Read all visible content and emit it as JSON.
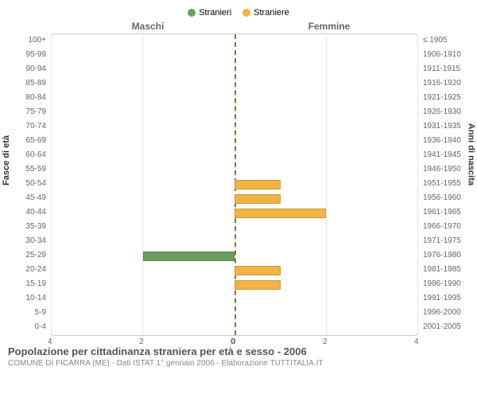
{
  "legend": {
    "male": {
      "label": "Stranieri",
      "color": "#6b9e5e"
    },
    "female": {
      "label": "Straniere",
      "color": "#f0b445"
    }
  },
  "side_titles": {
    "left": "Maschi",
    "right": "Femmine"
  },
  "y_axis_left": {
    "label": "Fasce di età"
  },
  "y_axis_right": {
    "label": "Anni di nascita"
  },
  "age_bands": [
    "100+",
    "95-99",
    "90-94",
    "85-89",
    "80-84",
    "75-79",
    "70-74",
    "65-69",
    "60-64",
    "55-59",
    "50-54",
    "45-49",
    "40-44",
    "35-39",
    "30-34",
    "25-29",
    "20-24",
    "15-19",
    "10-14",
    "5-9",
    "0-4"
  ],
  "birth_bands": [
    "≤ 1905",
    "1906-1910",
    "1911-1915",
    "1916-1920",
    "1921-1925",
    "1926-1930",
    "1931-1935",
    "1936-1940",
    "1941-1945",
    "1946-1950",
    "1951-1955",
    "1956-1960",
    "1961-1965",
    "1966-1970",
    "1971-1975",
    "1976-1980",
    "1981-1985",
    "1986-1990",
    "1991-1995",
    "1996-2000",
    "2001-2005"
  ],
  "x_axis": {
    "max": 4,
    "ticks": [
      0,
      2,
      4
    ]
  },
  "data": {
    "male": [
      0,
      0,
      0,
      0,
      0,
      0,
      0,
      0,
      0,
      0,
      0,
      0,
      0,
      0,
      0,
      2,
      0,
      0,
      0,
      0,
      0
    ],
    "female": [
      0,
      0,
      0,
      0,
      0,
      0,
      0,
      0,
      0,
      0,
      1,
      1,
      2,
      0,
      0,
      0,
      1,
      1,
      0,
      0,
      0
    ]
  },
  "colors": {
    "male_bar": "#6b9e5e",
    "female_bar": "#f0b445",
    "grid": "#e4e4e4",
    "center_axis": "#7a7a3a",
    "text": "#666666",
    "background": "#ffffff"
  },
  "footer": {
    "title": "Popolazione per cittadinanza straniera per età e sesso - 2006",
    "subtitle": "COMUNE DI FICARRA (ME) - Dati ISTAT 1° gennaio 2006 - Elaborazione TUTTITALIA.IT"
  }
}
